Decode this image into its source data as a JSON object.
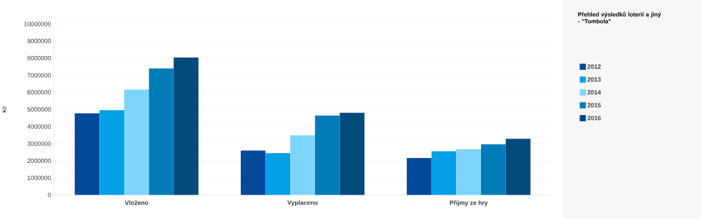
{
  "chart_data": {
    "type": "bar",
    "title": "Přehled výsledků loterií a jiný",
    "subtitle": "- \"Tombola\"",
    "ylabel": "Kč",
    "categories": [
      "Vloženo",
      "Vyplaceno",
      "Příjmy ze hry"
    ],
    "series": [
      {
        "name": "2012",
        "color": "#03499a",
        "values": [
          4770000,
          2600000,
          2160000
        ]
      },
      {
        "name": "2013",
        "color": "#03a0e8",
        "values": [
          4960000,
          2440000,
          2560000
        ]
      },
      {
        "name": "2014",
        "color": "#7dd5fe",
        "values": [
          6160000,
          3490000,
          2680000
        ]
      },
      {
        "name": "2015",
        "color": "#027cb9",
        "values": [
          7400000,
          4640000,
          2960000
        ]
      },
      {
        "name": "2016",
        "color": "#034a7c",
        "values": [
          8040000,
          4800000,
          3290000
        ]
      }
    ],
    "ylim": [
      0,
      10000000
    ],
    "yticks": [
      0,
      1000000,
      2000000,
      3000000,
      4000000,
      5000000,
      6000000,
      7000000,
      8000000,
      9000000,
      10000000
    ],
    "grid": "y",
    "legend": "right"
  }
}
